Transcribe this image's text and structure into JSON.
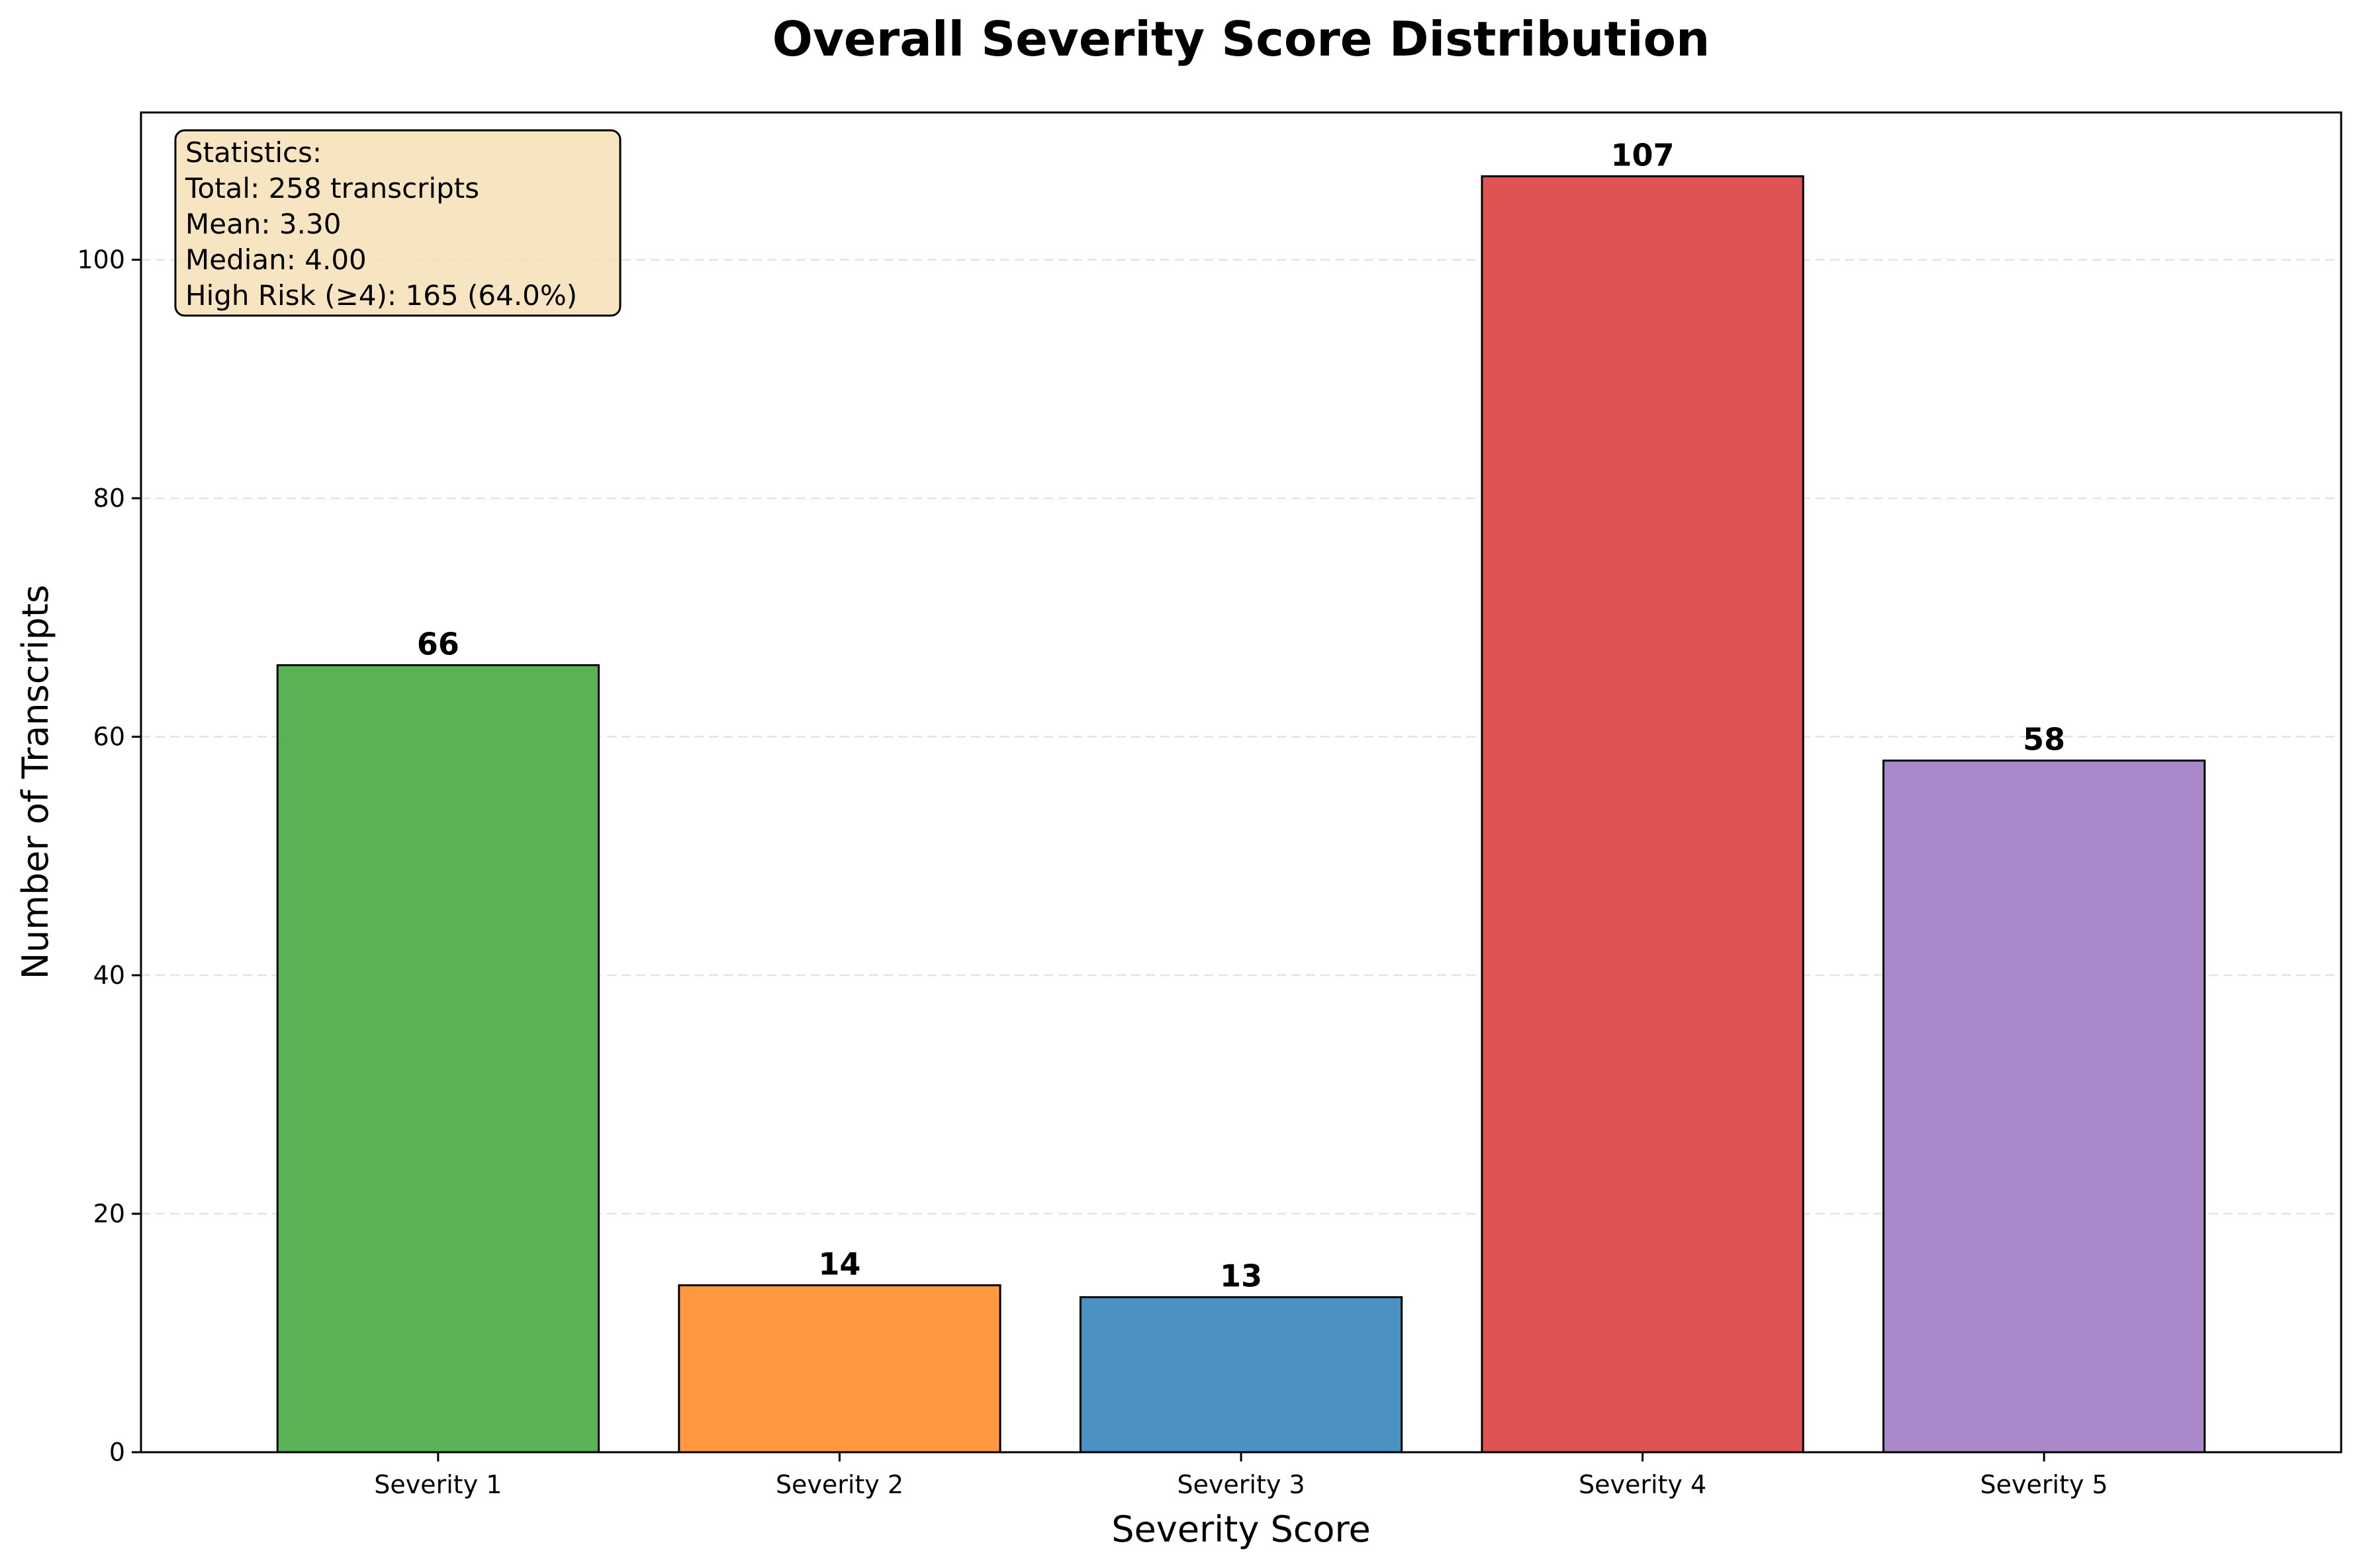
{
  "chart_data": {
    "type": "bar",
    "title": "Overall Severity Score Distribution",
    "xlabel": "Severity Score",
    "ylabel": "Number of Transcripts",
    "categories": [
      "Severity 1",
      "Severity 2",
      "Severity 3",
      "Severity 4",
      "Severity 5"
    ],
    "values": [
      66,
      14,
      13,
      107,
      58
    ],
    "colors": [
      "#59b356",
      "#ff983f",
      "#4b92c3",
      "#e05355",
      "#a988c9"
    ],
    "ylim": [
      0,
      112.35
    ],
    "yticks": [
      0,
      20,
      40,
      60,
      80,
      100
    ],
    "grid": "y-dashed",
    "stats_box": {
      "lines": [
        "Statistics:",
        "Total: 258 transcripts",
        "Mean: 3.30",
        "Median: 4.00",
        "High Risk (≥4): 165 (64.0%)"
      ],
      "placement": "top-left",
      "fill": "#f5deb3"
    }
  }
}
